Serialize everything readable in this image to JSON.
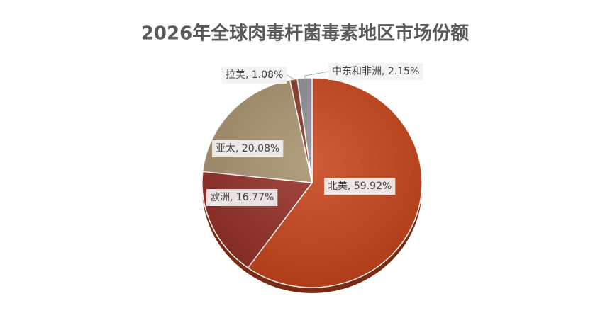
{
  "chart_data": {
    "type": "pie",
    "title": "2026年全球肉毒杆菌毒素地区市场份额",
    "values": [
      59.92,
      16.77,
      20.08,
      1.08,
      2.15
    ],
    "value_labels": [
      "北美, 59.92%",
      "欧洲, 16.77%",
      "亚太, 20.08%",
      "拉美, 1.08%",
      "中东和非洲, 2.15%"
    ],
    "colors": [
      "#c8461c",
      "#96302a",
      "#a8936f",
      "#8a3b2b",
      "#8e8e98"
    ]
  }
}
